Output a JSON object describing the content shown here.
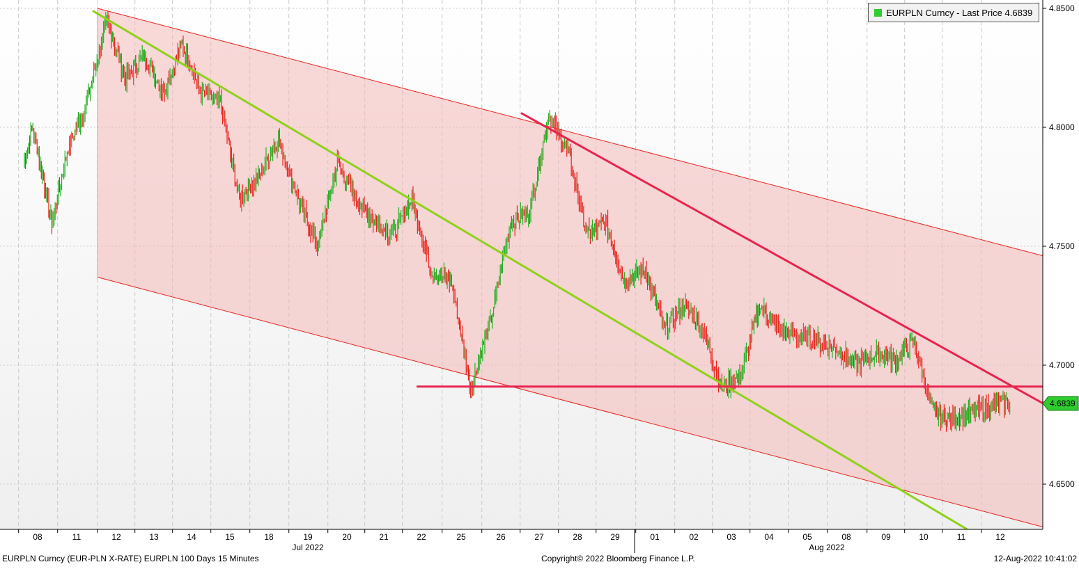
{
  "legend": {
    "label": "EURPLN Curncy - Last Price 4.6839",
    "color": "#2ecc2e"
  },
  "footer": {
    "left": "EURPLN Curncy (EUR-PLN X-RATE) EURPLN 100 Days 15 Minutes",
    "center": "Copyright© 2022 Bloomberg Finance L.P.",
    "right": "12-Aug-2022 10:41:02"
  },
  "price_badge": "4.6839",
  "chart_data": {
    "type": "line",
    "title": "",
    "series_name": "EURPLN Curncy - Last Price",
    "last_price": 4.6839,
    "ylim": [
      4.63,
      4.85
    ],
    "y_ticks": [
      "4.6500",
      "4.7000",
      "4.7500",
      "4.8000",
      "4.8500"
    ],
    "x_labels": [
      "08",
      "11",
      "12",
      "13",
      "14",
      "15",
      "18",
      "19",
      "20",
      "21",
      "22",
      "25",
      "26",
      "27",
      "28",
      "29",
      "01",
      "02",
      "03",
      "04",
      "05",
      "08",
      "09",
      "10",
      "11",
      "12"
    ],
    "month_labels": [
      "Jul 2022",
      "Aug 2022"
    ],
    "grid": true,
    "colors": {
      "up": "#22b022",
      "down": "#e8221c",
      "channel": "#f4b8b8",
      "green_line": "#8fd11a",
      "red_line": "#e8244e"
    },
    "price_path": [
      [
        "08",
        4.785
      ],
      [
        "08",
        4.8
      ],
      [
        "08",
        4.78
      ],
      [
        "08",
        4.76
      ],
      [
        "11",
        4.79
      ],
      [
        "11",
        4.81
      ],
      [
        "12",
        4.845
      ],
      [
        "12",
        4.82
      ],
      [
        "13",
        4.83
      ],
      [
        "13",
        4.815
      ],
      [
        "14",
        4.835
      ],
      [
        "14",
        4.815
      ],
      [
        "15",
        4.81
      ],
      [
        "15",
        4.77
      ],
      [
        "18",
        4.78
      ],
      [
        "18",
        4.795
      ],
      [
        "19",
        4.77
      ],
      [
        "19",
        4.75
      ],
      [
        "20",
        4.785
      ],
      [
        "20",
        4.77
      ],
      [
        "21",
        4.76
      ],
      [
        "21",
        4.755
      ],
      [
        "22",
        4.77
      ],
      [
        "22",
        4.74
      ],
      [
        "25",
        4.735
      ],
      [
        "25",
        4.69
      ],
      [
        "26",
        4.72
      ],
      [
        "26",
        4.76
      ],
      [
        "27",
        4.765
      ],
      [
        "27",
        4.805
      ],
      [
        "28",
        4.79
      ],
      [
        "28",
        4.755
      ],
      [
        "29",
        4.76
      ],
      [
        "29",
        4.735
      ],
      [
        "01",
        4.74
      ],
      [
        "01",
        4.715
      ],
      [
        "02",
        4.725
      ],
      [
        "02",
        4.715
      ],
      [
        "03",
        4.69
      ],
      [
        "03",
        4.696
      ],
      [
        "04",
        4.725
      ],
      [
        "04",
        4.715
      ],
      [
        "05",
        4.712
      ],
      [
        "05",
        4.71
      ],
      [
        "08",
        4.707
      ],
      [
        "08",
        4.7
      ],
      [
        "09",
        4.705
      ],
      [
        "09",
        4.702
      ],
      [
        "10",
        4.71
      ],
      [
        "10",
        4.68
      ],
      [
        "11",
        4.677
      ],
      [
        "11",
        4.68
      ],
      [
        "12",
        4.683
      ],
      [
        "12",
        4.6839
      ]
    ],
    "trend_lines": [
      {
        "name": "channel-upper",
        "from": [
          "11",
          4.85
        ],
        "to": [
          "12+",
          4.746
        ]
      },
      {
        "name": "channel-lower",
        "from": [
          "11",
          4.737
        ],
        "to": [
          "12+",
          4.632
        ]
      },
      {
        "name": "green-trend",
        "from": [
          "11",
          4.849
        ],
        "to": [
          "11",
          4.629
        ]
      },
      {
        "name": "red-resistance",
        "from": [
          "27",
          4.806
        ],
        "to": [
          "12+",
          4.684
        ]
      },
      {
        "name": "red-support",
        "from": [
          "22",
          4.691
        ],
        "to": [
          "12+",
          4.691
        ]
      }
    ]
  }
}
